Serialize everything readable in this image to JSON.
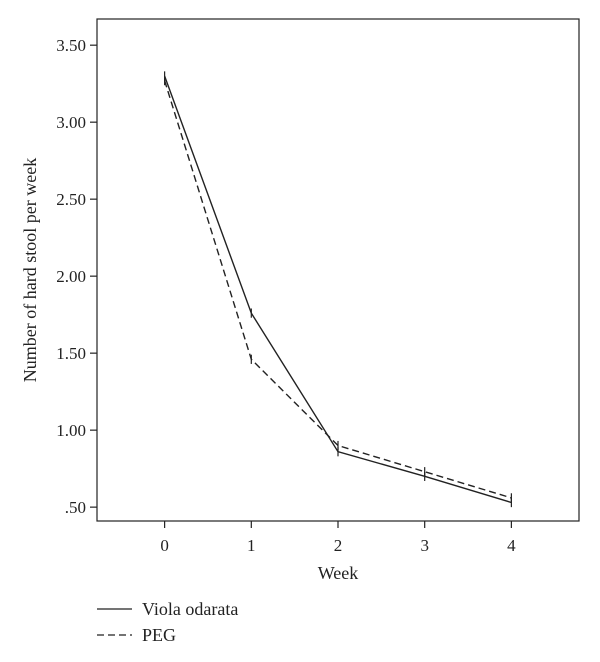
{
  "chart_data": {
    "type": "line",
    "xlabel": "Week",
    "ylabel": "Number of hard stool per week",
    "x": [
      0,
      1,
      2,
      3,
      4
    ],
    "x_tick_labels": [
      "0",
      "1",
      "2",
      "3",
      "4"
    ],
    "xlim": [
      -0.78,
      4.78
    ],
    "ylim": [
      0.41,
      3.67
    ],
    "y_ticks": [
      0.5,
      1.0,
      1.5,
      2.0,
      2.5,
      3.0,
      3.5
    ],
    "y_tick_labels": [
      ".50",
      "1.00",
      "1.50",
      "2.00",
      "2.50",
      "3.00",
      "3.50"
    ],
    "grid": false,
    "legend_position": "bottom-left",
    "series": [
      {
        "name": "Viola odarata",
        "style": "solid",
        "color": "#222222",
        "values": [
          3.3,
          1.76,
          0.86,
          0.7,
          0.53
        ],
        "error": [
          0.03,
          0.03,
          0.03,
          0.03,
          0.03
        ]
      },
      {
        "name": "PEG",
        "style": "dashed",
        "color": "#222222",
        "values": [
          3.27,
          1.46,
          0.9,
          0.73,
          0.56
        ],
        "error": [
          0.03,
          0.03,
          0.03,
          0.03,
          0.03
        ]
      }
    ]
  }
}
